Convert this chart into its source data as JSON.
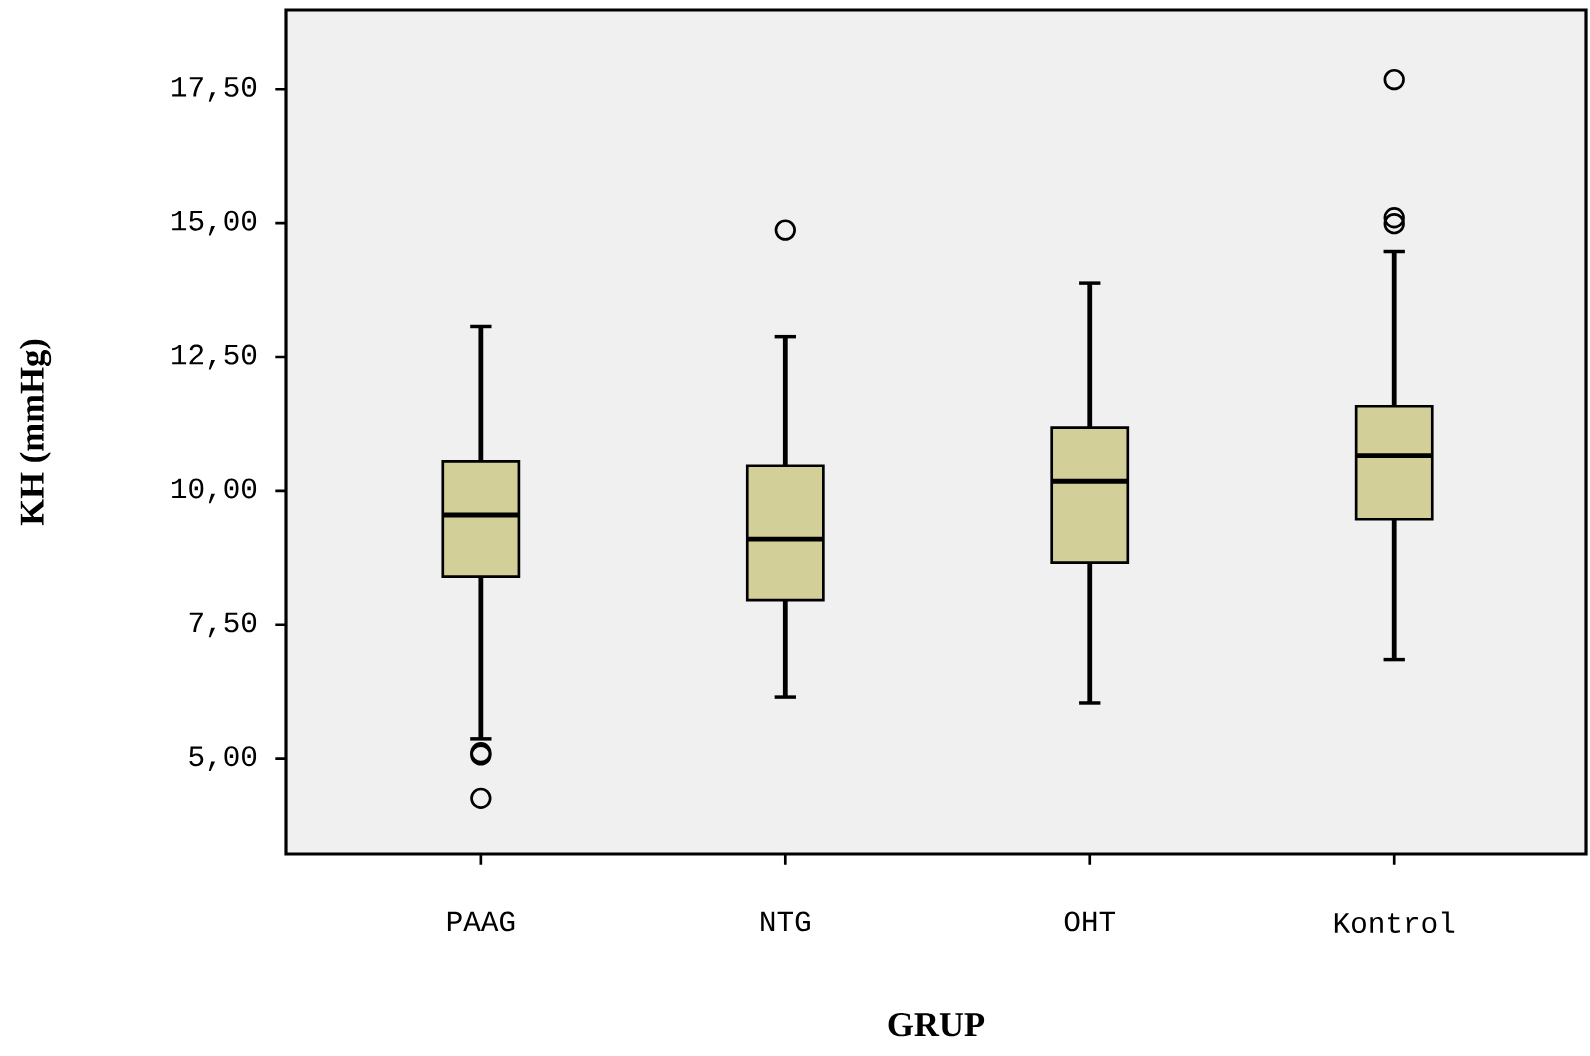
{
  "chart_data": {
    "type": "box",
    "xlabel": "GRUP",
    "ylabel": "KH (mmHg)",
    "categories": [
      "PAAG",
      "NTG",
      "OHT",
      "Kontrol"
    ],
    "color": "#d3cf98",
    "boxes": [
      {
        "low": 5.37,
        "q1": 8.4,
        "median": 9.55,
        "q3": 10.55,
        "high": 13.07,
        "outliers": [
          5.11,
          5.07,
          4.26
        ]
      },
      {
        "low": 6.15,
        "q1": 7.96,
        "median": 9.1,
        "q3": 10.47,
        "high": 12.88,
        "outliers": [
          14.87
        ]
      },
      {
        "low": 6.04,
        "q1": 8.66,
        "median": 10.18,
        "q3": 11.18,
        "high": 13.88
      },
      {
        "low": 6.85,
        "q1": 9.47,
        "median": 10.66,
        "q3": 11.58,
        "high": 14.47,
        "outliers": [
          17.68,
          15.1,
          14.99
        ]
      }
    ],
    "ylim": [
      3.22,
      18.98
    ],
    "yticks": [
      {
        "value": 5,
        "label": "5,00"
      },
      {
        "value": 7.5,
        "label": "7,50"
      },
      {
        "value": 10,
        "label": "10,00"
      },
      {
        "value": 12.5,
        "label": "12,50"
      },
      {
        "value": 15,
        "label": "15,00"
      },
      {
        "value": 17.5,
        "label": "17,50"
      }
    ],
    "grid": false
  }
}
